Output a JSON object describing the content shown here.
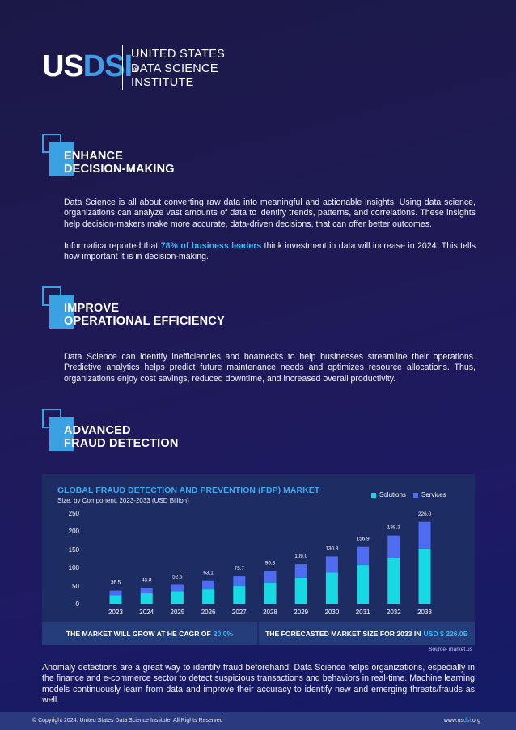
{
  "logo": {
    "us": "US",
    "dsi": "DSI",
    "registered": "®",
    "line1": "UNITED STATES",
    "line2": "DATA SCIENCE",
    "line3": "INSTITUTE"
  },
  "sections": [
    {
      "title_line1": "ENHANCE",
      "title_line2": "DECISION-MAKING",
      "para1": "Data Science is all about converting raw data into meaningful and actionable insights. Using data science, organizations can analyze vast amounts of data to identify trends, patterns, and correlations. These insights help decision-makers make more accurate, data-driven decisions, that can offer better outcomes.",
      "para2_before": "Informatica reported that ",
      "para2_highlight": "78% of business leaders",
      "para2_after": " think investment in data will increase in 2024. This tells how important it is in decision-making."
    },
    {
      "title_line1": "IMPROVE",
      "title_line2": "OPERATIONAL EFFICIENCY",
      "para1": "Data Science can identify inefficiencies and boatnecks to help businesses streamline their operations. Predictive analytics helps predict future maintenance needs and optimizes resource allocations. Thus, organizations enjoy cost savings, reduced downtime, and increased overall productivity."
    },
    {
      "title_line1": "ADVANCED",
      "title_line2": "FRAUD DETECTION"
    }
  ],
  "chart_data": {
    "type": "bar",
    "stacked": true,
    "title": "GLOBAL FRAUD DETECTION AND PREVENTION (FDP) MARKET",
    "subtitle": "Size, by Component, 2023-2033 (USD Billion)",
    "categories": [
      "2023",
      "2024",
      "2025",
      "2026",
      "2027",
      "2028",
      "2029",
      "2030",
      "2031",
      "2032",
      "2033"
    ],
    "totals": [
      "36.5",
      "43.8",
      "52.6",
      "63.1",
      "75.7",
      "90.8",
      "109.0",
      "130.8",
      "156.9",
      "188.3",
      "226.0"
    ],
    "series": [
      {
        "name": "Solutions",
        "values": [
          24,
          29,
          35,
          40,
          49,
          58,
          72,
          86,
          107,
          126,
          152
        ]
      },
      {
        "name": "Services",
        "values": [
          12.5,
          14.8,
          17.6,
          23.1,
          26.7,
          32.8,
          37,
          44.8,
          49.9,
          62.3,
          74
        ]
      }
    ],
    "yticks": [
      "0",
      "50",
      "100",
      "150",
      "200",
      "250"
    ],
    "ylim": [
      0,
      250
    ],
    "legend_position": "top-right",
    "colors": {
      "Solutions": "#16d9e3",
      "Services": "#4d6cf2"
    }
  },
  "stats": {
    "left_label": "THE MARKET WILL GROW AT HE CAGR OF",
    "left_value": "20.0%",
    "right_label": "THE FORECASTED MARKET SIZE FOR 2033 IN",
    "right_value": "USD $ 226.0B"
  },
  "source": "Source- market.us",
  "bottom_paragraph": "Anomaly detections are a great way to identify fraud beforehand. Data Science helps organizations, especially in the finance and e-commerce sector to detect suspicious transactions and behaviors in real-time. Machine learning models continuously learn from data and improve their accuracy to identify new and emerging threats/frauds as well.",
  "footer": {
    "copyright": "© Copyright 2024. United States Data Science Institute. All Rights Reserved",
    "url_prefix": "www.us",
    "url_highlight": "dsi",
    "url_suffix": ".org"
  }
}
